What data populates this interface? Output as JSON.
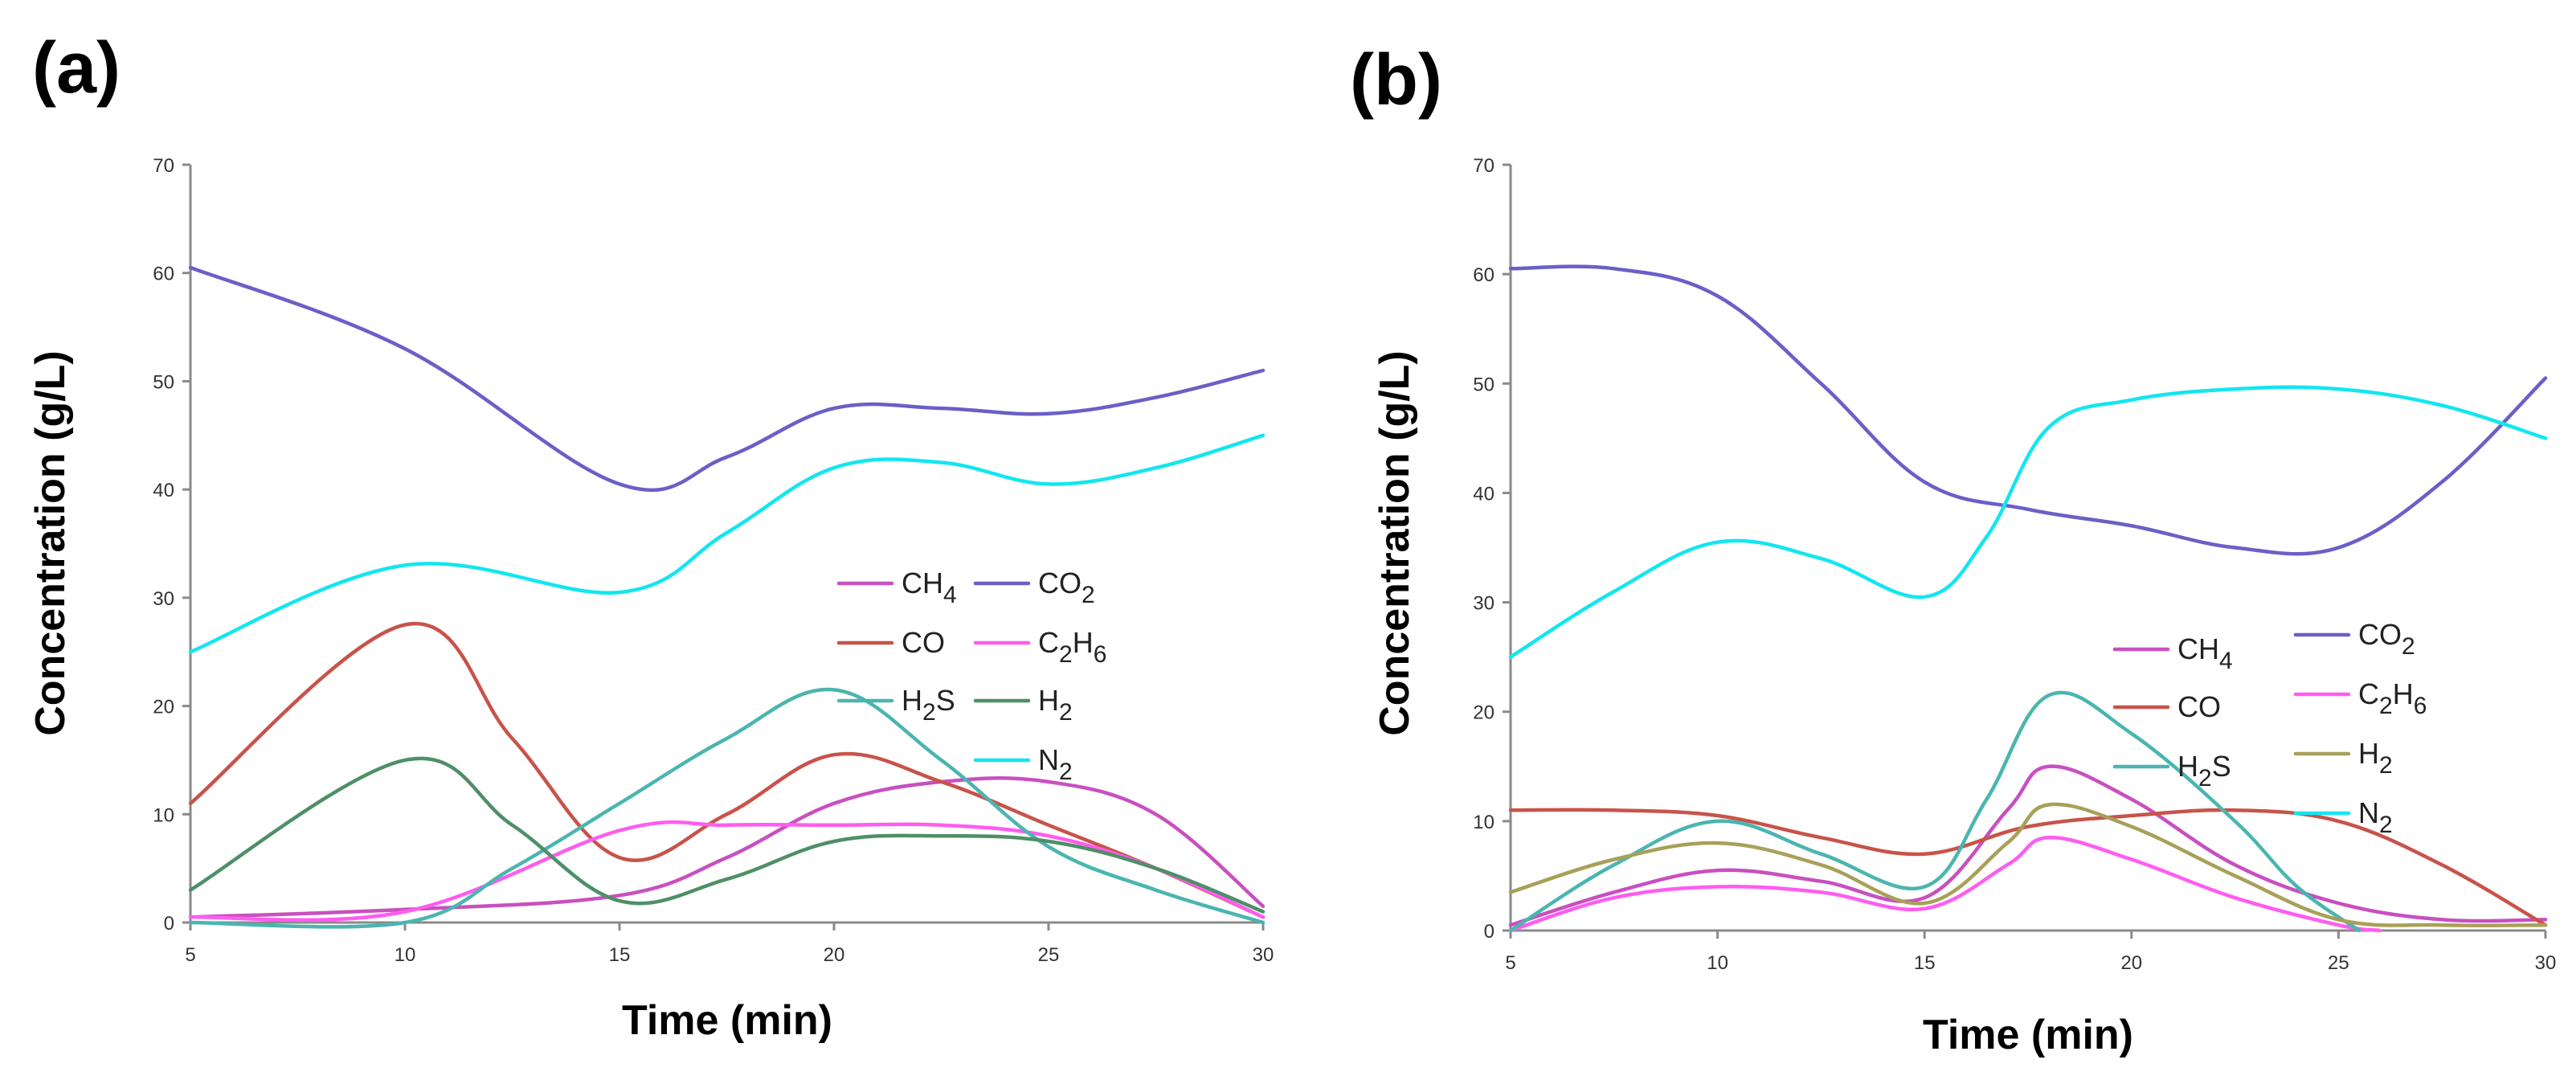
{
  "chart_data": [
    {
      "panel_label": "(a)",
      "type": "line",
      "xlabel": "Time (min)",
      "ylabel": "Concentration (g/L)",
      "xlim": [
        5,
        30
      ],
      "ylim": [
        0,
        70
      ],
      "xticks": [
        5,
        10,
        15,
        20,
        25,
        30
      ],
      "yticks": [
        0,
        10,
        20,
        30,
        40,
        50,
        60,
        70
      ],
      "legend_position": "center-right",
      "series": [
        {
          "name": "CH4",
          "label_main": "CH",
          "label_sub": "4",
          "color": "#c850c0",
          "x": [
            5,
            10,
            15,
            17.5,
            20,
            22.5,
            25,
            27.5,
            30
          ],
          "y": [
            0.5,
            1.2,
            2.5,
            6,
            11,
            13,
            13,
            10,
            1.5
          ]
        },
        {
          "name": "CO2",
          "label_main": "CO",
          "label_sub": "2",
          "color": "#6b5fc7",
          "x": [
            5,
            10,
            15,
            17.5,
            20,
            22.5,
            25,
            27.5,
            30
          ],
          "y": [
            60.5,
            53,
            40.5,
            43,
            47.5,
            47.5,
            47,
            48.5,
            51
          ]
        },
        {
          "name": "CO",
          "label_main": "CO",
          "label_sub": "",
          "color": "#c8534a",
          "x": [
            5,
            10,
            12.5,
            15,
            17.5,
            20,
            22.5,
            25,
            27.5,
            30
          ],
          "y": [
            11,
            27.5,
            17,
            6,
            10,
            15.5,
            13,
            9,
            5,
            0.5
          ]
        },
        {
          "name": "C2H6",
          "label_main": "C",
          "label_sub": "2",
          "label_main2": "H",
          "label_sub2": "6",
          "color": "#ff5cf0",
          "x": [
            5,
            10,
            15,
            17.5,
            20,
            22.5,
            25,
            27.5,
            30
          ],
          "y": [
            0.5,
            1,
            8.5,
            9,
            9,
            9,
            8,
            5,
            0.5
          ]
        },
        {
          "name": "H2S",
          "label_main": "H",
          "label_sub": "2",
          "label_main2": "S",
          "label_sub2": "",
          "color": "#4bb5b0",
          "x": [
            5,
            10,
            12.5,
            15,
            17.5,
            20,
            22.5,
            25,
            27.5,
            30
          ],
          "y": [
            0,
            0,
            5,
            11,
            17,
            21.5,
            15,
            7,
            3,
            0
          ]
        },
        {
          "name": "H2",
          "label_main": "H",
          "label_sub": "2",
          "color": "#4e8f68",
          "x": [
            5,
            10,
            12.5,
            15,
            17.5,
            20,
            22.5,
            25,
            27.5,
            30
          ],
          "y": [
            3,
            15,
            9,
            2,
            4,
            7.5,
            8,
            7.5,
            5,
            1
          ]
        },
        {
          "name": "N2",
          "label_main": "N",
          "label_sub": "2",
          "color": "#12e6f0",
          "x": [
            5,
            10,
            15,
            17.5,
            20,
            22.5,
            25,
            27.5,
            30
          ],
          "y": [
            25,
            33,
            30.5,
            36,
            42,
            42.5,
            40.5,
            42,
            45
          ]
        }
      ]
    },
    {
      "panel_label": "(b)",
      "type": "line",
      "xlabel": "Time (min)",
      "ylabel": "Concentration (g/L)",
      "xlim": [
        5,
        30
      ],
      "ylim": [
        0,
        70
      ],
      "xticks": [
        5,
        10,
        15,
        20,
        25,
        30
      ],
      "yticks": [
        0,
        10,
        20,
        30,
        40,
        50,
        60,
        70
      ],
      "legend_position": "center-right",
      "series": [
        {
          "name": "CH4",
          "label_main": "CH",
          "label_sub": "4",
          "color": "#c850c0",
          "x": [
            5,
            7.5,
            10,
            12.5,
            15,
            17,
            18,
            20,
            22.5,
            25,
            27.5,
            30
          ],
          "y": [
            0.5,
            3.5,
            5.5,
            4.5,
            3,
            11,
            15,
            12,
            6,
            2.5,
            1,
            1
          ]
        },
        {
          "name": "CO2",
          "label_main": "CO",
          "label_sub": "2",
          "color": "#6b5fc7",
          "x": [
            5,
            7.5,
            10,
            12.5,
            15,
            17.5,
            20,
            22.5,
            25,
            27.5,
            30
          ],
          "y": [
            60.5,
            60.5,
            58,
            50,
            41,
            38.5,
            37,
            35,
            35,
            41,
            50.5
          ]
        },
        {
          "name": "CO",
          "label_main": "CO",
          "label_sub": "",
          "color": "#c8534a",
          "x": [
            5,
            7.5,
            10,
            12.5,
            15,
            17.5,
            20,
            22.5,
            25,
            27.5,
            30
          ],
          "y": [
            11,
            11,
            10.5,
            8.5,
            7,
            9.5,
            10.5,
            11,
            10,
            6,
            0.5
          ]
        },
        {
          "name": "C2H6",
          "label_main": "C",
          "label_sub": "2",
          "label_main2": "H",
          "label_sub2": "6",
          "color": "#ff5cf0",
          "x": [
            5,
            7.5,
            10,
            12.5,
            15,
            17,
            18,
            20,
            22.5,
            25,
            26
          ],
          "y": [
            0,
            3,
            4,
            3.5,
            2,
            6,
            8.5,
            6.5,
            3,
            0.5,
            0
          ]
        },
        {
          "name": "H2S",
          "label_main": "H",
          "label_sub": "2",
          "label_main2": "S",
          "label_sub2": "",
          "color": "#4bb5b0",
          "x": [
            5,
            7.5,
            10,
            12.5,
            15,
            16.5,
            18,
            20,
            22.5,
            24,
            25.5
          ],
          "y": [
            0,
            6,
            10,
            7,
            4,
            12,
            21.5,
            18,
            10,
            4,
            0
          ]
        },
        {
          "name": "H2",
          "label_main": "H",
          "label_sub": "2",
          "color": "#a8a05a",
          "x": [
            5,
            7.5,
            10,
            12.5,
            15,
            17,
            18,
            20,
            22.5,
            25,
            27.5,
            30
          ],
          "y": [
            3.5,
            6.5,
            8,
            6,
            2.5,
            8,
            11.5,
            9.5,
            5,
            1,
            0.5,
            0.5
          ]
        },
        {
          "name": "N2",
          "label_main": "N",
          "label_sub": "2",
          "color": "#12e6f0",
          "x": [
            5,
            7.5,
            10,
            12.5,
            15,
            16.5,
            18,
            20,
            22.5,
            25,
            27.5,
            30
          ],
          "y": [
            25,
            31,
            35.5,
            34,
            30.5,
            36,
            46,
            48.5,
            49.5,
            49.5,
            48,
            45
          ]
        }
      ]
    }
  ]
}
